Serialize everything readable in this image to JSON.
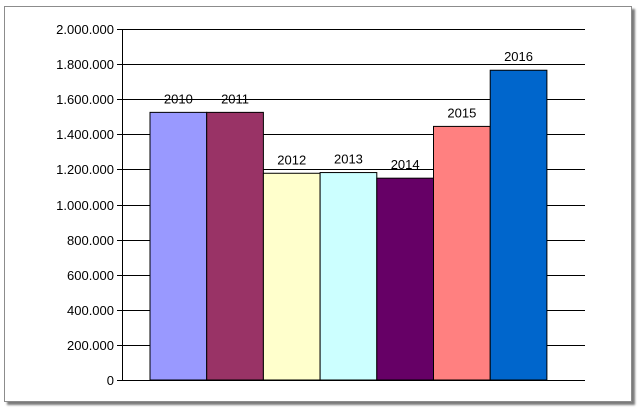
{
  "chart_data": {
    "type": "bar",
    "title": "",
    "xlabel": "",
    "ylabel": "",
    "ylim": [
      0,
      2000000
    ],
    "ytick_step": 200000,
    "ytick_labels": [
      "0",
      "200.000",
      "400.000",
      "600.000",
      "800.000",
      "1.000.000",
      "1.200.000",
      "1.400.000",
      "1.600.000",
      "1.800.000",
      "2.000.000"
    ],
    "grid": true,
    "legend": "none",
    "categories": [
      "2010",
      "2011",
      "2012",
      "2013",
      "2014",
      "2015",
      "2016"
    ],
    "values": [
      1525000,
      1525000,
      1178000,
      1182000,
      1150000,
      1445000,
      1765000
    ],
    "colors": [
      "#9999ff",
      "#993366",
      "#ffffcc",
      "#ccffff",
      "#660066",
      "#ff8080",
      "#0066cc"
    ]
  }
}
